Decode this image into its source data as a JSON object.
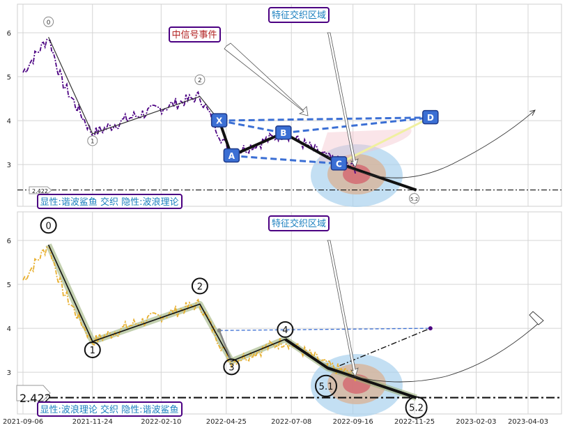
{
  "chart_data": [
    {
      "type": "line",
      "panel": "top",
      "x_dates": [
        "2021-09-06",
        "2021-11-24",
        "2022-02-10",
        "2022-04-25",
        "2022-07-08",
        "2022-09-16",
        "2022-11-25",
        "2023-02-03",
        "2023-04-03"
      ],
      "yticks": [
        3,
        4,
        5,
        6
      ],
      "ylim": [
        2.05,
        6.65
      ],
      "price_color": "#4b0082",
      "baseline_value": 2.422,
      "baseline_label": "2.422",
      "wave_points": [
        {
          "label": "0",
          "date": "2021-10-05",
          "value": 5.9
        },
        {
          "label": "1",
          "date": "2021-11-24",
          "value": 3.7
        },
        {
          "label": "2",
          "date": "2022-03-26",
          "value": 4.55
        },
        {
          "label": "5.2",
          "date": "2022-11-27",
          "value": 2.42
        }
      ],
      "xabcd_points": [
        {
          "label": "X",
          "date": "2022-04-17",
          "value": 4.0
        },
        {
          "label": "A",
          "date": "2022-05-01",
          "value": 3.2
        },
        {
          "label": "B",
          "date": "2022-06-29",
          "value": 3.72
        },
        {
          "label": "C",
          "date": "2022-08-31",
          "value": 3.02
        },
        {
          "label": "D",
          "date": "2022-12-13",
          "value": 4.07
        }
      ],
      "annotations": {
        "zone": "特征交织区域",
        "signal": "中信号事件",
        "legend": "显性:谐波鲨鱼 交织 隐性:波浪理论"
      },
      "colors": {
        "xabcd": "#3b6fd4",
        "signal_text": "#b22222",
        "zone_text": "#1a7fbf",
        "legend_border": "#4b0082"
      }
    },
    {
      "type": "line",
      "panel": "bottom",
      "yticks": [
        3,
        4,
        5,
        6
      ],
      "ylim": [
        2.05,
        6.65
      ],
      "price_color": "#e8b030",
      "baseline_value": 2.422,
      "baseline_label": "2.422",
      "wave_points": [
        {
          "label": "0",
          "date": "2021-10-05",
          "value": 5.9
        },
        {
          "label": "1",
          "date": "2021-11-24",
          "value": 3.7
        },
        {
          "label": "2",
          "date": "2022-03-26",
          "value": 4.55
        },
        {
          "label": "3",
          "date": "2022-05-01",
          "value": 3.25
        },
        {
          "label": "4",
          "date": "2022-07-01",
          "value": 3.75
        },
        {
          "label": "5.1",
          "date": "2022-08-18",
          "value": 3.1
        },
        {
          "label": "5.2",
          "date": "2022-11-27",
          "value": 2.42
        }
      ],
      "annotations": {
        "zone": "特征交织区域",
        "legend": "显性:波浪理论 交织 隐性:谐波鲨鱼"
      },
      "colors": {
        "harmonic_dash": "#3b6fd4",
        "zone_text": "#1a7fbf",
        "legend_border": "#4b0082"
      }
    }
  ]
}
